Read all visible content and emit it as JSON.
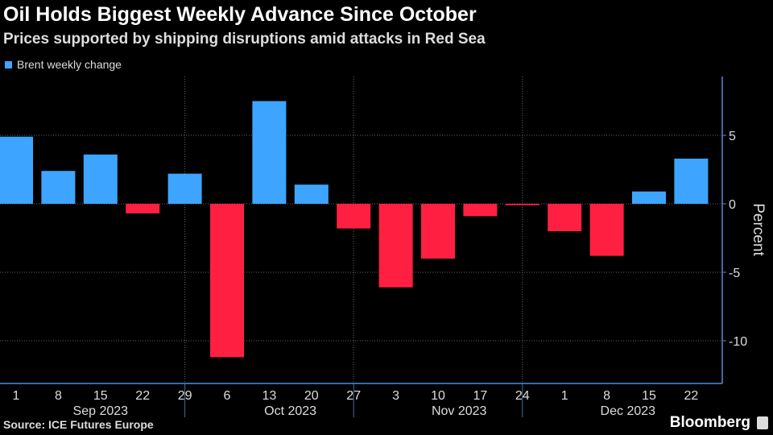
{
  "chart_data": {
    "type": "bar",
    "title": "Oil Holds Biggest Weekly Advance Since October",
    "subtitle": "Prices supported by shipping disruptions amid attacks in Red Sea",
    "legend": [
      "Brent weekly change"
    ],
    "ylabel": "Percent",
    "ylim": [
      -13,
      9.5
    ],
    "yticks": [
      5,
      0,
      -5,
      -10
    ],
    "categories": [
      "1",
      "8",
      "15",
      "22",
      "29",
      "6",
      "13",
      "20",
      "27",
      "3",
      "10",
      "17",
      "24",
      "1",
      "8",
      "15",
      "22"
    ],
    "months": [
      {
        "label": "Sep 2023",
        "from": 0,
        "to": 4
      },
      {
        "label": "Oct 2023",
        "from": 5,
        "to": 8
      },
      {
        "label": "Nov 2023",
        "from": 9,
        "to": 12
      },
      {
        "label": "Dec 2023",
        "from": 13,
        "to": 16
      }
    ],
    "values": [
      4.9,
      2.4,
      3.6,
      -0.7,
      2.2,
      -11.2,
      7.5,
      1.4,
      -1.8,
      -6.1,
      -4.0,
      -0.9,
      -0.1,
      -2.0,
      -3.8,
      0.9,
      3.3
    ],
    "colors": {
      "positive": "#3da5ff",
      "negative": "#ff2041",
      "axis": "#4a90d9"
    }
  },
  "source": "Source: ICE Futures Europe",
  "brand": "Bloomberg"
}
